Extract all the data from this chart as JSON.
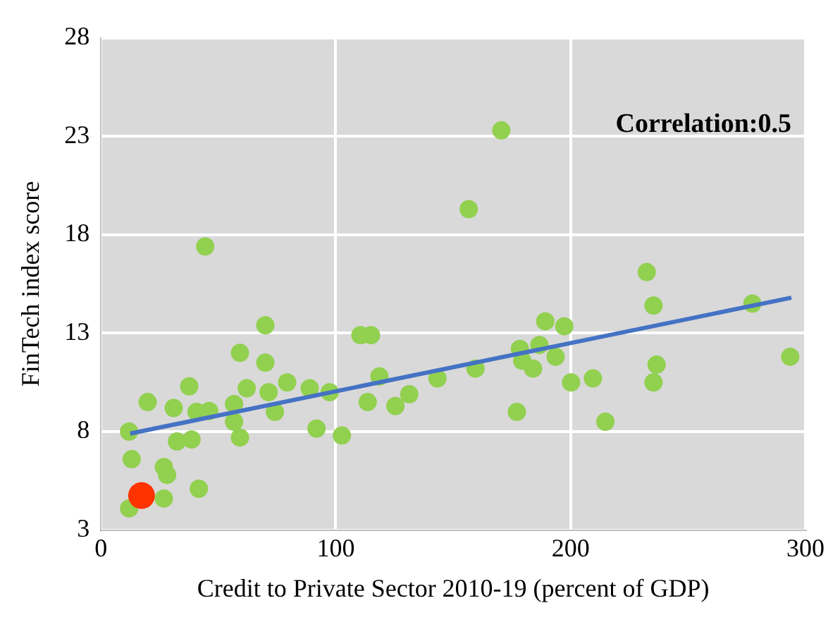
{
  "chart_data": {
    "type": "scatter",
    "xlabel": "Credit to Private Sector 2010-19 (percent of GDP)",
    "ylabel": "FinTech index score",
    "xlim": [
      0,
      300
    ],
    "xticks": [
      0,
      100,
      200,
      300
    ],
    "ylim": [
      3,
      28
    ],
    "yticks": [
      3,
      8,
      13,
      18,
      23,
      28
    ],
    "grid": true,
    "legend": false,
    "marker": "circle",
    "annotations": [
      "Correlation:0.5"
    ],
    "series": [
      {
        "color": "#92d050",
        "x": [
          44.4,
          70,
          59.2,
          70,
          37.6,
          19.9,
          31,
          40.7,
          46.1,
          56.7,
          62.1,
          56.7,
          59.2,
          71.4,
          74.1,
          79.3,
          88.9,
          97.4,
          91.8,
          102.6,
          12,
          13.1,
          26.8,
          28.2,
          38.6,
          32.4,
          41.7,
          26.8,
          12,
          110.5,
          115,
          113.6,
          118.6,
          125.4,
          131.3,
          143.3,
          170.5,
          156.6,
          159.5,
          178.4,
          179.4,
          184,
          186.7,
          193.6,
          189.2,
          197.3,
          177.1,
          200.2,
          209.5,
          214.8,
          232.4,
          235.3,
          236.6,
          235.3,
          277.4,
          293.5
        ],
        "values": [
          17.4,
          13.4,
          12,
          11.5,
          10.3,
          9.5,
          9.2,
          9,
          9.05,
          9.4,
          10.2,
          8.5,
          7.7,
          10,
          9,
          10.5,
          10.2,
          10,
          8.15,
          7.8,
          8,
          6.6,
          6.2,
          5.8,
          7.6,
          7.5,
          5.1,
          4.6,
          4.1,
          12.9,
          12.9,
          9.5,
          10.8,
          9.3,
          9.9,
          10.7,
          23.3,
          19.3,
          11.2,
          12.2,
          11.6,
          11.2,
          12.4,
          11.8,
          13.6,
          13.35,
          9,
          10.5,
          10.7,
          8.5,
          16.1,
          14.4,
          11.4,
          10.5,
          14.5,
          11.8
        ]
      },
      {
        "color": "#ff3300",
        "x": [
          17.3
        ],
        "values": [
          4.75
        ]
      },
      {
        "type": "line",
        "color": "#4472c4",
        "x": [
          12.5,
          294
        ],
        "values": [
          7.9,
          14.8
        ],
        "marker": "none"
      }
    ]
  }
}
